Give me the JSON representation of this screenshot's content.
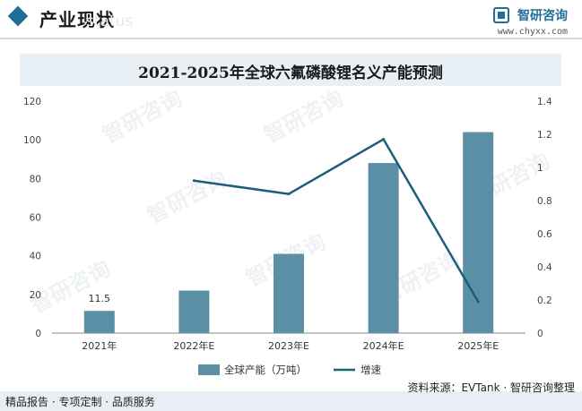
{
  "header": {
    "section_title": "产业现状",
    "watermark_en": "status",
    "brand_name": "智研咨询",
    "brand_url": "www.chyxx.com"
  },
  "chart_title": "2021-2025年全球六氟磷酸锂名义产能预测",
  "chart_data": {
    "type": "bar+line",
    "categories": [
      "2021年",
      "2022年E",
      "2023年E",
      "2024年E",
      "2025年E"
    ],
    "series": [
      {
        "name": "全球产能（万吨）",
        "type": "bar",
        "axis": "left",
        "values": [
          11.5,
          22,
          41,
          88,
          104
        ],
        "color": "#5b8fa6"
      },
      {
        "name": "增速",
        "type": "line",
        "axis": "right",
        "values": [
          null,
          0.92,
          0.84,
          1.17,
          0.19
        ],
        "color": "#1b5e7a"
      }
    ],
    "data_labels": [
      {
        "index": 0,
        "text": "11.5"
      }
    ],
    "y_left": {
      "min": 0,
      "max": 120,
      "ticks": [
        "0",
        "20",
        "40",
        "60",
        "80",
        "100",
        "120"
      ]
    },
    "y_right": {
      "min": 0,
      "max": 1.4,
      "ticks": [
        "0",
        "0.2",
        "0.4",
        "0.6",
        "0.8",
        "1",
        "1.2",
        "1.4"
      ]
    },
    "grid": false,
    "legend_position": "bottom"
  },
  "footer": {
    "left": "精品报告 · 专项定制 · 品质服务",
    "source": "资料来源：EVTank · 智研咨询整理"
  }
}
